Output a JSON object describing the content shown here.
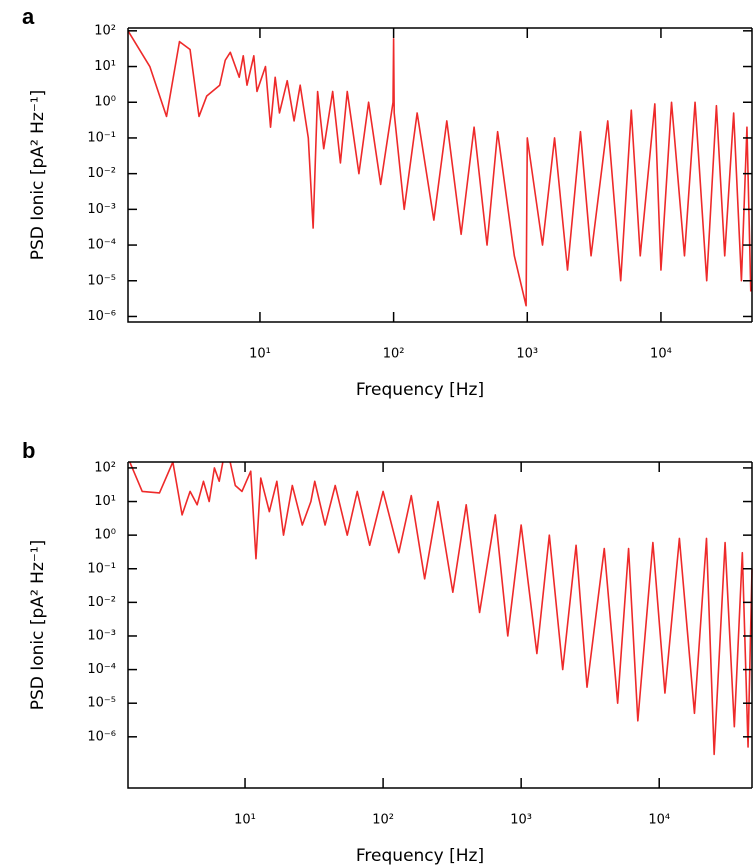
{
  "chart_data": [
    {
      "type": "line",
      "panel": "a",
      "xlabel": "Frequency [Hz]",
      "ylabel": "PSD Ionic [pA² Hz⁻¹]",
      "xscale": "log",
      "yscale": "log",
      "color": "#ee2a2a",
      "xlim": [
        1.03,
        48000
      ],
      "ylim": [
        7e-07,
        120
      ],
      "xticks": [
        {
          "value": 10,
          "label": "10¹"
        },
        {
          "value": 100,
          "label": "10²"
        },
        {
          "value": 1000,
          "label": "10³"
        },
        {
          "value": 10000,
          "label": "10⁴"
        }
      ],
      "yticks": [
        {
          "value": 100,
          "label": "10²"
        },
        {
          "value": 10,
          "label": "10¹"
        },
        {
          "value": 1,
          "label": "10⁰"
        },
        {
          "value": 0.1,
          "label": "10⁻¹"
        },
        {
          "value": 0.01,
          "label": "10⁻²"
        },
        {
          "value": 0.001,
          "label": "10⁻³"
        },
        {
          "value": 0.0001,
          "label": "10⁻⁴"
        },
        {
          "value": 1e-05,
          "label": "10⁻⁵"
        },
        {
          "value": 1e-06,
          "label": "10⁻⁶"
        }
      ],
      "x": [
        1.03,
        1.5,
        2,
        2.5,
        3,
        3.5,
        4,
        5,
        5.5,
        6,
        7,
        7.5,
        8,
        9,
        9.5,
        11,
        12,
        13,
        14,
        16,
        18,
        20,
        23,
        25,
        27,
        30,
        35,
        40,
        45,
        55,
        65,
        80,
        99,
        100,
        101,
        120,
        150,
        200,
        250,
        320,
        400,
        500,
        600,
        800,
        980,
        1000,
        1300,
        1600,
        2000,
        2500,
        3000,
        4000,
        5000,
        6000,
        7000,
        9000,
        10000,
        12000,
        15000,
        18000,
        22000,
        26000,
        30000,
        35000,
        40000,
        44000,
        47000
      ],
      "values": [
        100,
        10,
        0.4,
        50,
        30,
        0.4,
        1.5,
        3,
        15,
        25,
        5,
        20,
        3,
        20,
        2,
        10,
        0.2,
        5,
        0.5,
        4,
        0.3,
        3,
        0.1,
        0.0003,
        2,
        0.05,
        2,
        0.02,
        2,
        0.01,
        1,
        0.005,
        1,
        60,
        0.5,
        0.001,
        0.5,
        0.0005,
        0.3,
        0.0002,
        0.2,
        0.0001,
        0.15,
        5e-05,
        2e-06,
        0.1,
        0.0001,
        0.1,
        2e-05,
        0.15,
        5e-05,
        0.3,
        1e-05,
        0.6,
        5e-05,
        0.9,
        2e-05,
        1,
        5e-05,
        1,
        1e-05,
        0.8,
        5e-05,
        0.5,
        1e-05,
        0.2,
        5e-06
      ]
    },
    {
      "type": "line",
      "panel": "b",
      "xlabel": "Frequency [Hz]",
      "ylabel": "PSD Ionic [pA² Hz⁻¹]",
      "xscale": "log",
      "yscale": "log",
      "color": "#ee2a2a",
      "xlim": [
        1.42,
        47000
      ],
      "ylim": [
        3e-08,
        150
      ],
      "xticks": [
        {
          "value": 10,
          "label": "10¹"
        },
        {
          "value": 100,
          "label": "10²"
        },
        {
          "value": 1000,
          "label": "10³"
        },
        {
          "value": 10000,
          "label": "10⁴"
        }
      ],
      "yticks": [
        {
          "value": 100,
          "label": "10²"
        },
        {
          "value": 10,
          "label": "10¹"
        },
        {
          "value": 1,
          "label": "10⁰"
        },
        {
          "value": 0.1,
          "label": "10⁻¹"
        },
        {
          "value": 0.01,
          "label": "10⁻²"
        },
        {
          "value": 0.001,
          "label": "10⁻³"
        },
        {
          "value": 0.0001,
          "label": "10⁻⁴"
        },
        {
          "value": 1e-05,
          "label": "10⁻⁵"
        },
        {
          "value": 1e-06,
          "label": "10⁻⁶"
        }
      ],
      "x": [
        1.42,
        1.8,
        2.4,
        3,
        3.5,
        4,
        4.5,
        5,
        5.5,
        6,
        6.5,
        7,
        7.8,
        8.5,
        9.5,
        11,
        12,
        13,
        15,
        17,
        19,
        22,
        26,
        30,
        32,
        38,
        45,
        55,
        65,
        80,
        100,
        130,
        160,
        200,
        250,
        320,
        400,
        500,
        650,
        800,
        1000,
        1300,
        1600,
        2000,
        2500,
        3000,
        4000,
        5000,
        6000,
        7000,
        9000,
        11000,
        14000,
        18000,
        22000,
        25000,
        30000,
        35000,
        40000,
        44000,
        47000
      ],
      "values": [
        200,
        20,
        18,
        150,
        4,
        20,
        8,
        40,
        10,
        100,
        40,
        200,
        150,
        30,
        20,
        80,
        0.2,
        50,
        5,
        40,
        1,
        30,
        2,
        10,
        40,
        2,
        30,
        1,
        20,
        0.5,
        20,
        0.3,
        15,
        0.05,
        10,
        0.02,
        8,
        0.005,
        4,
        0.001,
        2,
        0.0003,
        1,
        0.0001,
        0.5,
        3e-05,
        0.4,
        1e-05,
        0.4,
        3e-06,
        0.6,
        2e-05,
        0.8,
        5e-06,
        0.8,
        3e-07,
        0.6,
        2e-06,
        0.3,
        5e-07,
        0.1
      ]
    }
  ]
}
